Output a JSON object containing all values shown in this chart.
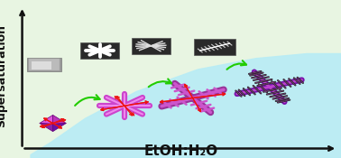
{
  "bg_color": "#e8f5e2",
  "curve_fill": "#b8ecf5",
  "axis_color": "#111111",
  "xlabel": "EtOH:H₂O",
  "ylabel": "Supersaturation",
  "xlabel_fontsize": 11,
  "ylabel_fontsize": 9,
  "arrow_red": "#ee1111",
  "arrow_green": "#22cc00",
  "crystal_magenta": "#cc44cc",
  "crystal_purple": "#8822aa",
  "crystal_dark": "#993399",
  "figsize": [
    3.78,
    1.75
  ],
  "dpi": 100
}
